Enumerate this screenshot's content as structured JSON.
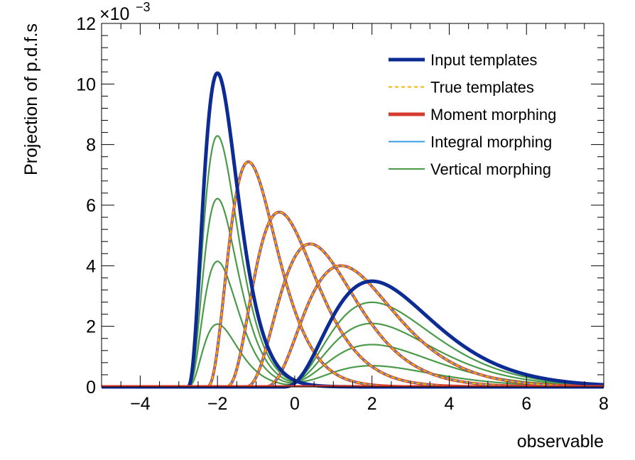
{
  "chart_data": {
    "type": "line",
    "xlabel": "observable",
    "ylabel": "Projection of p.d.f.s",
    "xlim": [
      -5,
      8
    ],
    "ylim": [
      0,
      0.012
    ],
    "y_exponent_label": "×10",
    "y_exponent_value": "−3",
    "x_ticks": [
      -4,
      -2,
      0,
      2,
      4,
      6,
      8
    ],
    "x_tick_labels": [
      "−4",
      "−2",
      "0",
      "2",
      "4",
      "6",
      "8"
    ],
    "y_ticks": [
      0,
      2,
      4,
      6,
      8,
      10,
      12
    ],
    "y_tick_labels": [
      "0",
      "2",
      "4",
      "6",
      "8",
      "10",
      "12"
    ],
    "legend": {
      "position": "top-right",
      "entries": [
        {
          "key": "input",
          "label": "Input templates",
          "color": "#0c2c94",
          "style": "solid-thick"
        },
        {
          "key": "true",
          "label": "True templates",
          "color": "#f5b800",
          "style": "dashed"
        },
        {
          "key": "moment",
          "label": "Moment morphing",
          "color": "#d63a2e",
          "style": "solid-thick"
        },
        {
          "key": "integral",
          "label": "Integral morphing",
          "color": "#3a9ee8",
          "style": "solid"
        },
        {
          "key": "vertical",
          "label": "Vertical morphing",
          "color": "#4a9a4a",
          "style": "solid"
        }
      ]
    },
    "distribution_family": "gamma-shaped, right-skewed",
    "input_templates": [
      {
        "mode": -2.0,
        "peak": 0.01036,
        "sigma_left": 0.52,
        "sigma_right": 0.52
      },
      {
        "mode": 2.0,
        "peak": 0.00349,
        "sigma_left": 1.55,
        "sigma_right": 1.55
      }
    ],
    "morphed_templates": [
      {
        "mode": -1.2,
        "peak": 0.00743
      },
      {
        "mode": -0.4,
        "peak": 0.00577
      },
      {
        "mode": 0.4,
        "peak": 0.00472
      },
      {
        "mode": 1.2,
        "peak": 0.004
      }
    ],
    "vertical_weights": [
      0.8,
      0.6,
      0.4,
      0.2
    ]
  }
}
